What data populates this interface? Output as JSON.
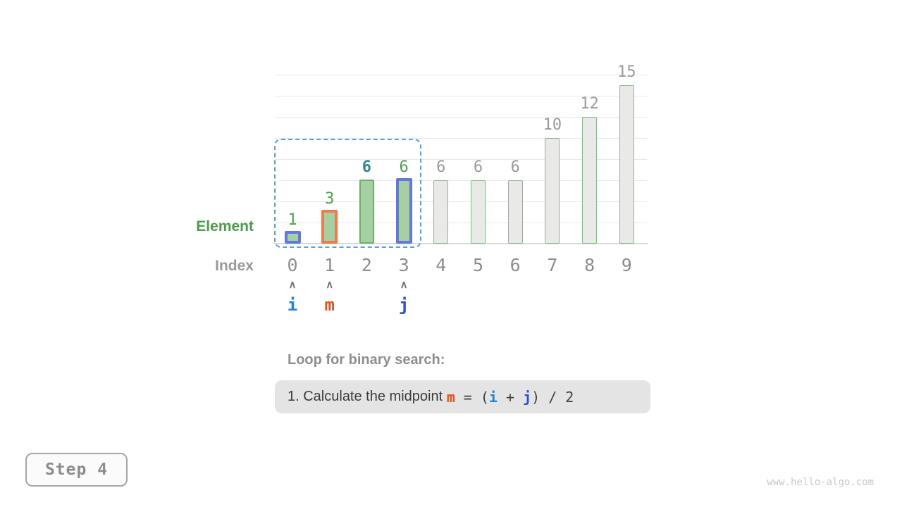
{
  "colors": {
    "green_fill": "#a6cfa2",
    "green_border": "#6fae6f",
    "green_border_light": "#85bb85",
    "gray_fill": "#e9e9e7",
    "blue_border": "#6377e4",
    "orange_border": "#f0794e",
    "dashed_range": "#54a1e8",
    "label_green": "#4ba24b",
    "label_teal": "#2e8b85",
    "label_gray": "#9a9a9a",
    "index_gray": "#8d8d8d",
    "pointer_i": "#1d86d8",
    "pointer_m": "#e8511c",
    "pointer_j": "#2d4fd6",
    "arrow_gray": "#757575",
    "grid_line": "#e9e9e9",
    "axis_line": "#d9d9d9",
    "formula_plain": "#3f3f3f"
  },
  "chart_data": {
    "type": "bar",
    "title": "",
    "xlabel": "Index",
    "ylabel": "Element",
    "categories": [
      "0",
      "1",
      "2",
      "3",
      "4",
      "5",
      "6",
      "7",
      "8",
      "9"
    ],
    "values": [
      1,
      3,
      6,
      6,
      6,
      6,
      6,
      10,
      12,
      15
    ],
    "bar_styles": [
      "range-blue",
      "range-orange",
      "range",
      "range-blue",
      "out",
      "out",
      "out",
      "out",
      "out",
      "out"
    ],
    "value_label_styles": [
      "green",
      "green",
      "teal-bold",
      "green",
      "gray",
      "gray",
      "gray",
      "gray",
      "gray",
      "gray"
    ],
    "ylim": [
      0,
      16
    ],
    "grid_step": 2,
    "grid_on": true,
    "row_labels": {
      "element": "Element",
      "index": "Index"
    },
    "search_range": {
      "from_index": 0,
      "to_index": 3
    },
    "pointers": [
      {
        "label": "i",
        "index": 0,
        "color_key": "pointer_i"
      },
      {
        "label": "m",
        "index": 1,
        "color_key": "pointer_m"
      },
      {
        "label": "j",
        "index": 3,
        "color_key": "pointer_j"
      }
    ],
    "pointer_arrow_glyph": "∧"
  },
  "caption": {
    "heading": "Loop for binary search:",
    "step_description": "1. Calculate the midpoint ",
    "formula_tokens": [
      {
        "text": "m",
        "color_key": "pointer_m",
        "bold": true
      },
      {
        "text": " = (",
        "color_key": "formula_plain",
        "bold": false
      },
      {
        "text": "i",
        "color_key": "pointer_i",
        "bold": true
      },
      {
        "text": " + ",
        "color_key": "formula_plain",
        "bold": false
      },
      {
        "text": "j",
        "color_key": "pointer_j",
        "bold": true
      },
      {
        "text": ") / 2",
        "color_key": "formula_plain",
        "bold": false
      }
    ]
  },
  "step_button": {
    "label": "Step 4"
  },
  "watermark": "www.hello-algo.com"
}
